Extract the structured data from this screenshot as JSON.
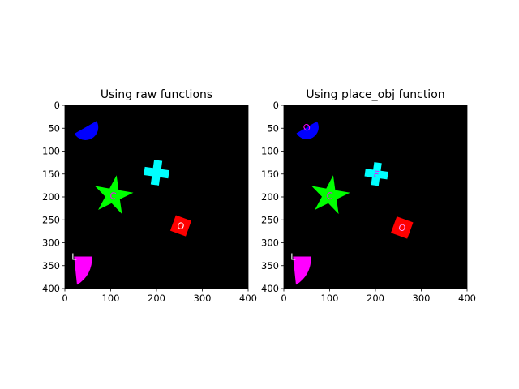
{
  "figure": {
    "background": "#ffffff"
  },
  "chart_data": [
    {
      "type": "image",
      "title": "Using raw functions",
      "xlabel": "",
      "ylabel": "",
      "xlim": [
        0,
        400
      ],
      "ylim": [
        400,
        0
      ],
      "x_ticks": [
        0,
        100,
        200,
        300,
        400
      ],
      "y_ticks": [
        0,
        50,
        100,
        150,
        200,
        250,
        300,
        350,
        400
      ],
      "image_background": "#000000",
      "grid": false,
      "objects": [
        {
          "shape": "half-disc",
          "color": "#0000ff",
          "cx": 45,
          "cy": 48,
          "r": 28,
          "rotation": -30,
          "letter": null
        },
        {
          "shape": "cross",
          "color": "#00ffff",
          "cx": 200,
          "cy": 147,
          "size": 27,
          "rotation": 8,
          "letter": null
        },
        {
          "shape": "star",
          "color": "#00ff00",
          "cx": 105,
          "cy": 197,
          "r_outer": 45,
          "r_inner": 17,
          "rotation": 10,
          "letter": "C",
          "letter_color": "#ff00ff"
        },
        {
          "shape": "square",
          "color": "#ff0000",
          "cx": 253,
          "cy": 263,
          "size": 36,
          "rotation": 20,
          "letter": "O",
          "letter_color": "#ffffff"
        },
        {
          "shape": "quarter-disc",
          "color": "#ff00ff",
          "cx": 20,
          "cy": 330,
          "r": 65,
          "rotation": 0,
          "letter": "L",
          "letter_color": "#ffffff"
        }
      ]
    },
    {
      "type": "image",
      "title": "Using place_obj function",
      "xlabel": "",
      "ylabel": "",
      "xlim": [
        0,
        400
      ],
      "ylim": [
        400,
        0
      ],
      "x_ticks": [
        0,
        100,
        200,
        300,
        400
      ],
      "y_ticks": [
        0,
        50,
        100,
        150,
        200,
        250,
        300,
        350,
        400
      ],
      "image_background": "#000000",
      "grid": false,
      "objects": [
        {
          "shape": "half-disc",
          "color": "#0000ff",
          "cx": 50,
          "cy": 48,
          "r": 26,
          "rotation": -30,
          "letter": "O",
          "letter_color": "#ff00ff"
        },
        {
          "shape": "cross",
          "color": "#00ffff",
          "cx": 202,
          "cy": 150,
          "size": 25,
          "rotation": 8,
          "letter": "E",
          "letter_color": "#ff00ff"
        },
        {
          "shape": "star",
          "color": "#00ff00",
          "cx": 100,
          "cy": 197,
          "r_outer": 45,
          "r_inner": 17,
          "rotation": 10,
          "letter": "C",
          "letter_color": "#ff00ff"
        },
        {
          "shape": "square",
          "color": "#ff0000",
          "cx": 258,
          "cy": 267,
          "size": 38,
          "rotation": 20,
          "letter": "O",
          "letter_color": "#ff99ff"
        },
        {
          "shape": "quarter-disc",
          "color": "#ff00ff",
          "cx": 20,
          "cy": 330,
          "r": 65,
          "rotation": 0,
          "letter": "L",
          "letter_color": "#ffffff"
        }
      ]
    }
  ]
}
